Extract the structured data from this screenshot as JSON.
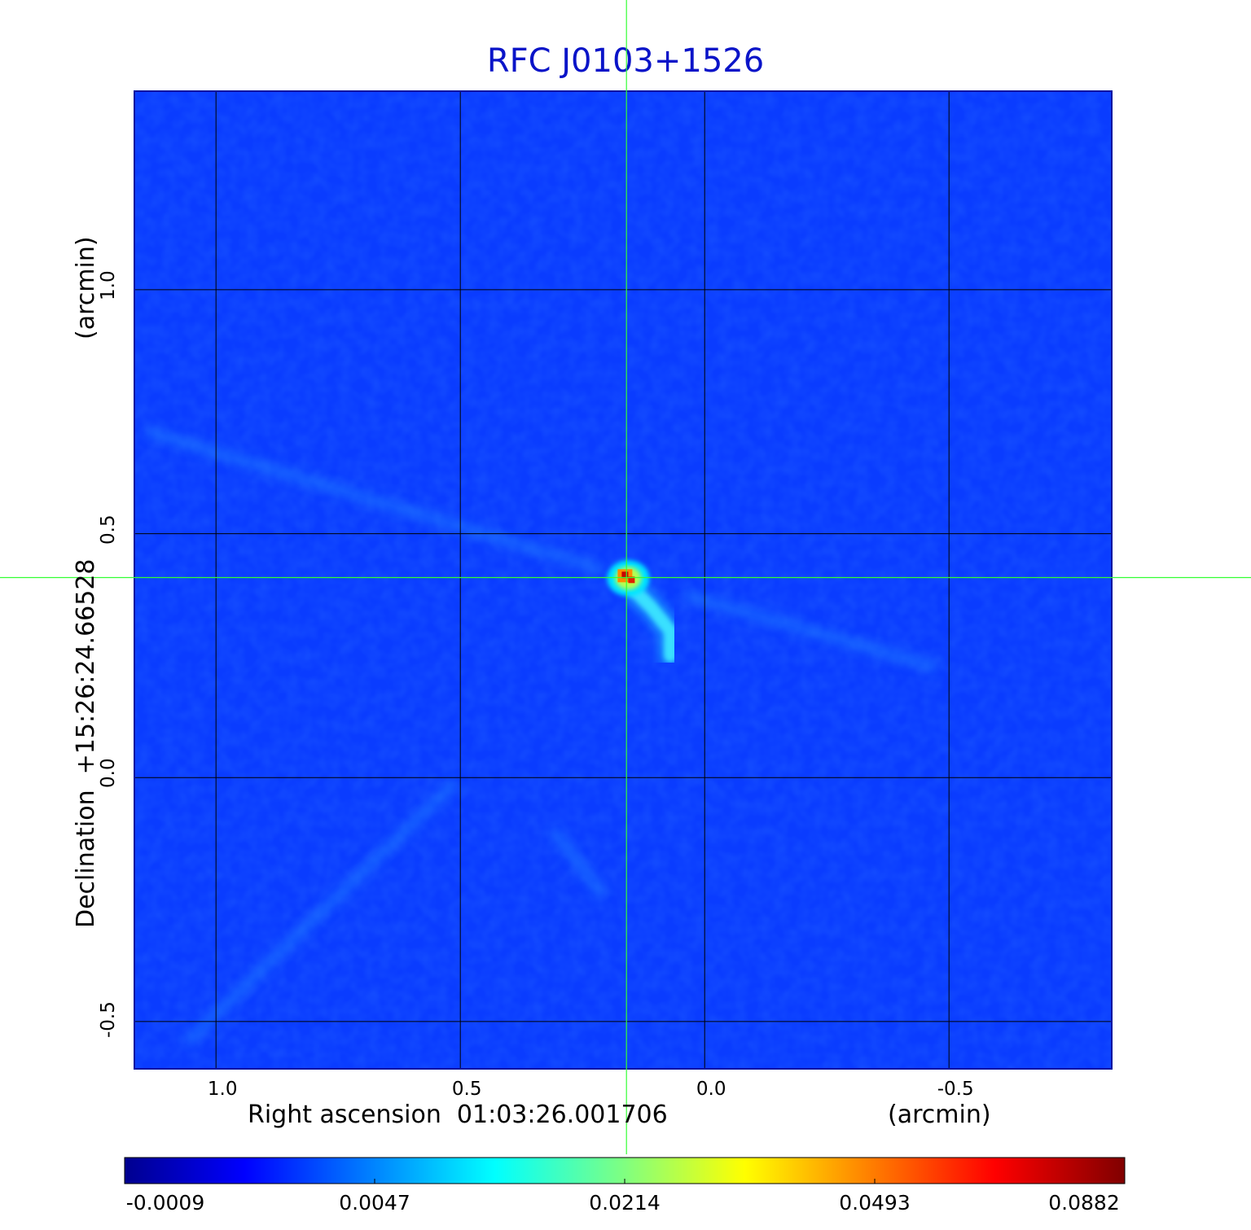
{
  "chart_data": {
    "type": "heatmap",
    "title": "RFC J0103+1526",
    "xlabel": "Right ascension  01:03:26.001706",
    "xunit": "(arcmin)",
    "ylabel": "Declination  +15:26:24.66528",
    "yunit": "(arcmin)",
    "x_ticks": [
      "1.0",
      "0.5",
      "0.0",
      "-0.5"
    ],
    "y_ticks": [
      "1.0",
      "0.5",
      "0.0",
      "-0.5"
    ],
    "x_tick_values": [
      1.0,
      0.5,
      0.0,
      -0.5
    ],
    "y_tick_values": [
      1.0,
      0.5,
      0.0,
      -0.5
    ],
    "xlim": [
      1.167,
      -0.833
    ],
    "ylim": [
      -0.597,
      1.407
    ],
    "grid": true,
    "crosshair": {
      "x": 0.16,
      "y": 0.41
    },
    "colorbar": {
      "colormap": "jet",
      "ticks": [
        "-0.0009",
        "0.0047",
        "0.0214",
        "0.0493",
        "0.0882"
      ],
      "min": -0.0009,
      "max": 0.0882
    },
    "features": [
      {
        "kind": "core",
        "x": 0.163,
        "y": 0.412,
        "peak": 0.0882
      },
      {
        "kind": "jet",
        "points": [
          [
            0.15,
            0.39
          ],
          [
            0.11,
            0.35
          ],
          [
            0.07,
            0.3
          ],
          [
            0.07,
            0.25
          ]
        ],
        "level": 0.012
      }
    ],
    "background_level": 0.0,
    "colors": {
      "background": "#0a3cff",
      "title": "#0a14c8",
      "crosshair": "#33ff33",
      "grid": "#000000"
    }
  }
}
